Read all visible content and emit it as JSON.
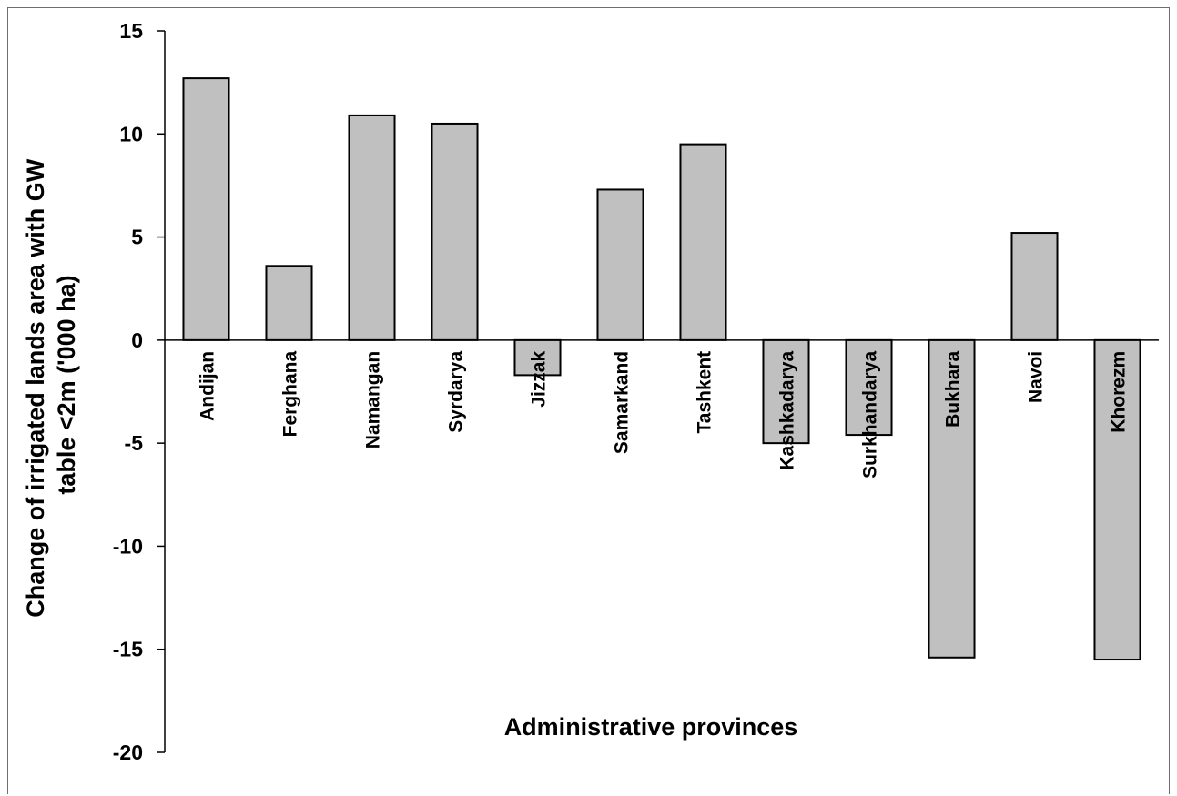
{
  "chart_data": {
    "type": "bar",
    "xlabel": "Administrative provinces",
    "ylabel_lines": [
      "Change of irrigated lands area with GW",
      "table <2m ('000 ha)"
    ],
    "ylim": [
      -20,
      15
    ],
    "yticks": [
      15,
      10,
      5,
      0,
      -5,
      -10,
      -15,
      -20
    ],
    "categories": [
      "Andijan",
      "Ferghana",
      "Namangan",
      "Syrdarya",
      "Jizzak",
      "Samarkand",
      "Tashkent",
      "Kashkadarya",
      "Surkhandarya",
      "Bukhara",
      "Navoi",
      "Khorezm"
    ],
    "values": [
      12.7,
      3.6,
      10.9,
      10.5,
      -1.7,
      7.3,
      9.5,
      -5.0,
      -4.6,
      -15.4,
      5.2,
      -15.5
    ],
    "grid": false,
    "legend": "none",
    "colors": {
      "bar_fill": "#c0c0c0",
      "bar_stroke": "#000000",
      "axis": "#000000"
    }
  }
}
